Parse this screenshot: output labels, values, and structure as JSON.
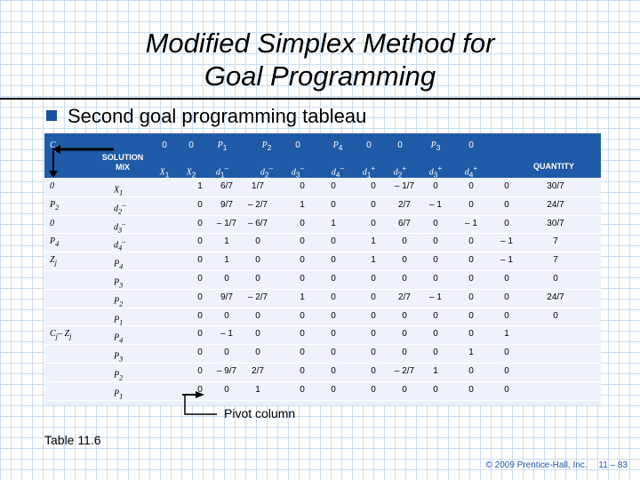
{
  "title": {
    "line1": "Modified Simplex Method for",
    "line2": "Goal Programming"
  },
  "subtitle": "Second goal programming tableau",
  "table": {
    "corner": "C",
    "corner_sub": "j",
    "solution_mix_label_line1": "SOLUTION",
    "solution_mix_label_line2": "MIX",
    "quantity_label": "QUANTITY",
    "cj_row": [
      "0",
      "0",
      "P",
      "P",
      "0",
      "P",
      "0",
      "0",
      "P",
      "0"
    ],
    "cj_subs": [
      "",
      "",
      "1",
      "2",
      "",
      "4",
      "",
      "",
      "3",
      ""
    ],
    "var_row": [
      "X",
      "X",
      "d",
      "d",
      "d",
      "d",
      "d",
      "d",
      "d",
      "d"
    ],
    "var_subs": [
      "1",
      "2",
      "1",
      "2",
      "3",
      "4",
      "1",
      "2",
      "3",
      "4"
    ],
    "var_sups": [
      "",
      "",
      "–",
      "–",
      "–",
      "–",
      "+",
      "+",
      "+",
      "+"
    ],
    "rows": [
      {
        "cj": "0",
        "cj_sub": "",
        "mix": "X",
        "mix_sub": "1",
        "mix_sup": "",
        "vals": [
          "1",
          "6/7",
          "1/7",
          "0",
          "0",
          "0",
          "– 1/7",
          "0",
          "0",
          "0"
        ],
        "qty": "30/7"
      },
      {
        "cj": "P",
        "cj_sub": "2",
        "mix": "d",
        "mix_sub": "2",
        "mix_sup": "–",
        "vals": [
          "0",
          "9/7",
          "– 2/7",
          "1",
          "0",
          "0",
          "2/7",
          "– 1",
          "0",
          "0"
        ],
        "qty": "24/7"
      },
      {
        "cj": "0",
        "cj_sub": "",
        "mix": "d",
        "mix_sub": "3",
        "mix_sup": "–",
        "vals": [
          "0",
          "– 1/7",
          "– 6/7",
          "0",
          "1",
          "0",
          "6/7",
          "0",
          "– 1",
          "0"
        ],
        "qty": "30/7"
      },
      {
        "cj": "P",
        "cj_sub": "4",
        "mix": "d",
        "mix_sub": "4",
        "mix_sup": "–",
        "vals": [
          "0",
          "1",
          "0",
          "0",
          "0",
          "1",
          "0",
          "0",
          "0",
          "– 1"
        ],
        "qty": "7"
      },
      {
        "cj": "Z",
        "cj_sub": "j",
        "mix": "P",
        "mix_sub": "4",
        "mix_sup": "",
        "vals": [
          "0",
          "1",
          "0",
          "0",
          "0",
          "1",
          "0",
          "0",
          "0",
          "– 1"
        ],
        "qty": "7"
      },
      {
        "cj": "",
        "cj_sub": "",
        "mix": "P",
        "mix_sub": "3",
        "mix_sup": "",
        "vals": [
          "0",
          "0",
          "0",
          "0",
          "0",
          "0",
          "0",
          "0",
          "0",
          "0"
        ],
        "qty": "0"
      },
      {
        "cj": "",
        "cj_sub": "",
        "mix": "P",
        "mix_sub": "2",
        "mix_sup": "",
        "vals": [
          "0",
          "9/7",
          "– 2/7",
          "1",
          "0",
          "0",
          "2/7",
          "– 1",
          "0",
          "0"
        ],
        "qty": "24/7"
      },
      {
        "cj": "",
        "cj_sub": "",
        "mix": "P",
        "mix_sub": "1",
        "mix_sup": "",
        "vals": [
          "0",
          "0",
          "0",
          "0",
          "0",
          "0",
          "0",
          "0",
          "0",
          "0"
        ],
        "qty": "0"
      },
      {
        "cj": "C",
        "cj_sub": "j",
        "cj_tail": "– Z",
        "cj_tail_sub": "j",
        "mix": "P",
        "mix_sub": "4",
        "mix_sup": "",
        "vals": [
          "0",
          "– 1",
          "0",
          "0",
          "0",
          "0",
          "0",
          "0",
          "0",
          "1"
        ],
        "qty": ""
      },
      {
        "cj": "",
        "cj_sub": "",
        "mix": "P",
        "mix_sub": "3",
        "mix_sup": "",
        "vals": [
          "0",
          "0",
          "0",
          "0",
          "0",
          "0",
          "0",
          "0",
          "1",
          "0"
        ],
        "qty": ""
      },
      {
        "cj": "",
        "cj_sub": "",
        "mix": "P",
        "mix_sub": "2",
        "mix_sup": "",
        "vals": [
          "0",
          "– 9/7",
          "2/7",
          "0",
          "0",
          "0",
          "– 2/7",
          "1",
          "0",
          "0"
        ],
        "qty": ""
      },
      {
        "cj": "",
        "cj_sub": "",
        "mix": "P",
        "mix_sub": "1",
        "mix_sup": "",
        "vals": [
          "0",
          "0",
          "1",
          "0",
          "0",
          "0",
          "0",
          "0",
          "0",
          "0"
        ],
        "qty": ""
      }
    ]
  },
  "pivot_label": "Pivot column",
  "caption": "Table 11.6",
  "footer": {
    "copyright": "© 2009 Prentice-Hall, Inc.",
    "page": "11 – 83"
  },
  "colors": {
    "header": "#1f5aa6",
    "accent": "#1a4fa0",
    "body": "#eef3fb",
    "grid": "#c9ddef"
  }
}
